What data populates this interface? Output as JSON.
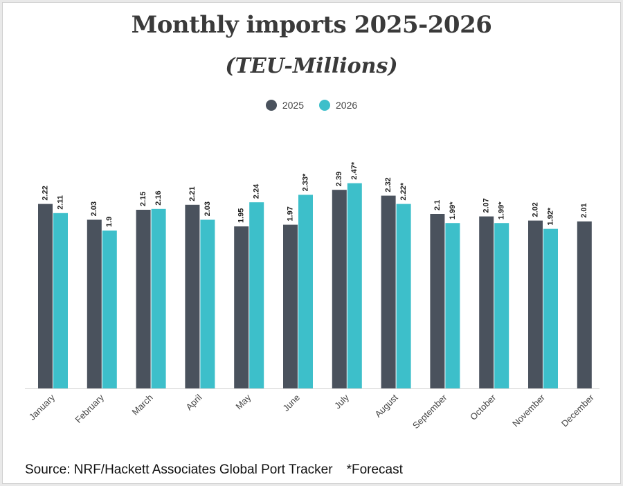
{
  "chart_data": {
    "type": "bar",
    "title": "Monthly imports 2025-2026",
    "subtitle": "(TEU-Millions)",
    "categories": [
      "January",
      "February",
      "March",
      "April",
      "May",
      "June",
      "July",
      "August",
      "September",
      "October",
      "November",
      "December"
    ],
    "series": [
      {
        "name": "2025",
        "color": "#4a525d",
        "values": [
          2.22,
          2.03,
          2.15,
          2.21,
          1.95,
          1.97,
          2.39,
          2.32,
          2.1,
          2.07,
          2.02,
          2.01
        ],
        "labels": [
          "2.22",
          "2.03",
          "2.15",
          "2.21",
          "1.95",
          "1.97",
          "2.39",
          "2.32",
          "2.1",
          "2.07",
          "2.02",
          "2.01"
        ]
      },
      {
        "name": "2026",
        "color": "#3dbfca",
        "values": [
          2.11,
          1.9,
          2.16,
          2.03,
          2.24,
          2.33,
          2.47,
          2.22,
          1.99,
          1.99,
          1.92,
          null
        ],
        "labels": [
          "2.11",
          "1.9",
          "2.16",
          "2.03",
          "2.24",
          "2.33*",
          "2.47*",
          "2.22*",
          "1.99*",
          "1.99*",
          "1.92*",
          ""
        ]
      }
    ],
    "ylim": [
      0,
      2.5
    ],
    "grid": false,
    "legend": "top-center"
  },
  "footer": {
    "source": "Source: NRF/Hackett Associates Global Port Tracker",
    "note": "*Forecast"
  }
}
